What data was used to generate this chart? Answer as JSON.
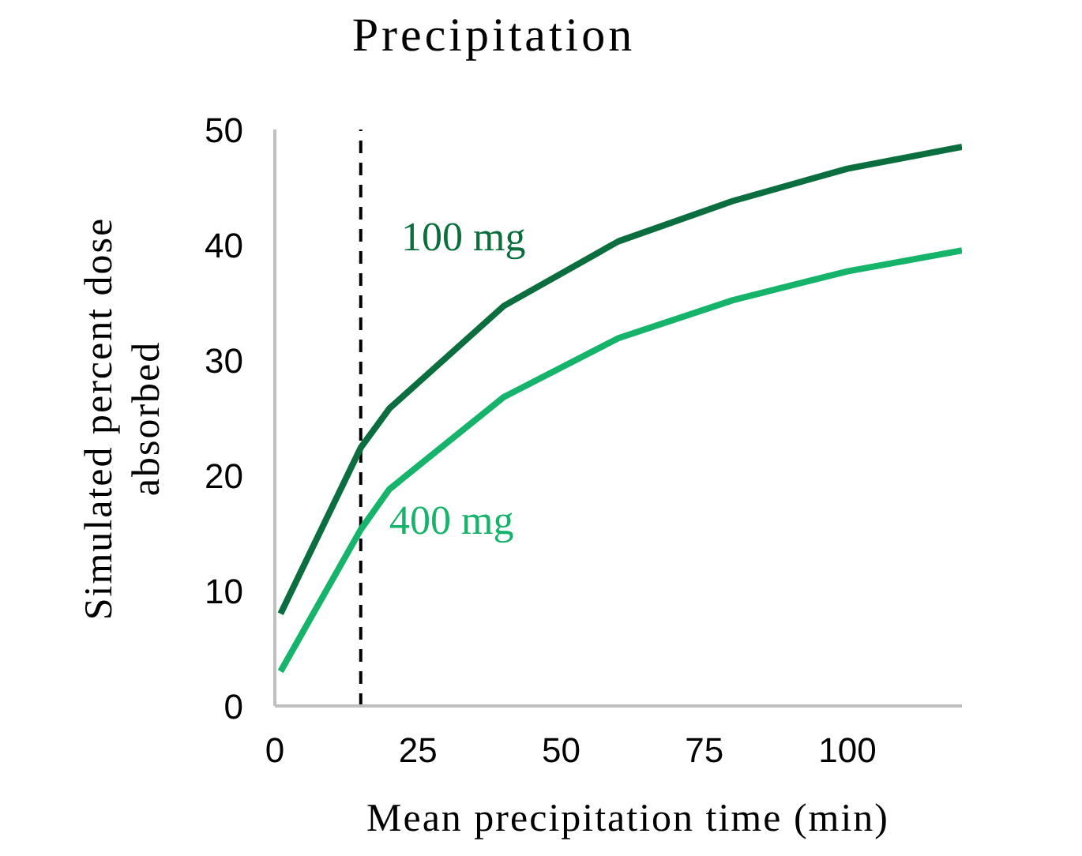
{
  "chart_data": {
    "type": "line",
    "title": "Precipitation",
    "xlabel": "Mean precipitation time (min)",
    "ylabel": "Simulated percent dose absorbed",
    "x": [
      1,
      15,
      20,
      40,
      60,
      80,
      100,
      120
    ],
    "series": [
      {
        "name": "100 mg",
        "color": "#0b6e3e",
        "values": [
          8.0,
          22.4,
          25.8,
          34.7,
          40.3,
          43.8,
          46.6,
          48.5
        ]
      },
      {
        "name": "400 mg",
        "color": "#16b36a",
        "values": [
          3.0,
          15.3,
          18.8,
          26.8,
          31.9,
          35.2,
          37.7,
          39.5
        ]
      }
    ],
    "xlim": [
      0,
      120
    ],
    "xticks": [
      0,
      25,
      50,
      75,
      100
    ],
    "ylim": [
      0,
      50
    ],
    "yticks": [
      0,
      10,
      20,
      30,
      40,
      50
    ],
    "ref_lines": [
      {
        "axis": "x",
        "value": 15,
        "color": "#000000",
        "line_style": "dashed"
      }
    ],
    "grid": false,
    "legend": false,
    "marker": "none",
    "line_style": "solid"
  }
}
